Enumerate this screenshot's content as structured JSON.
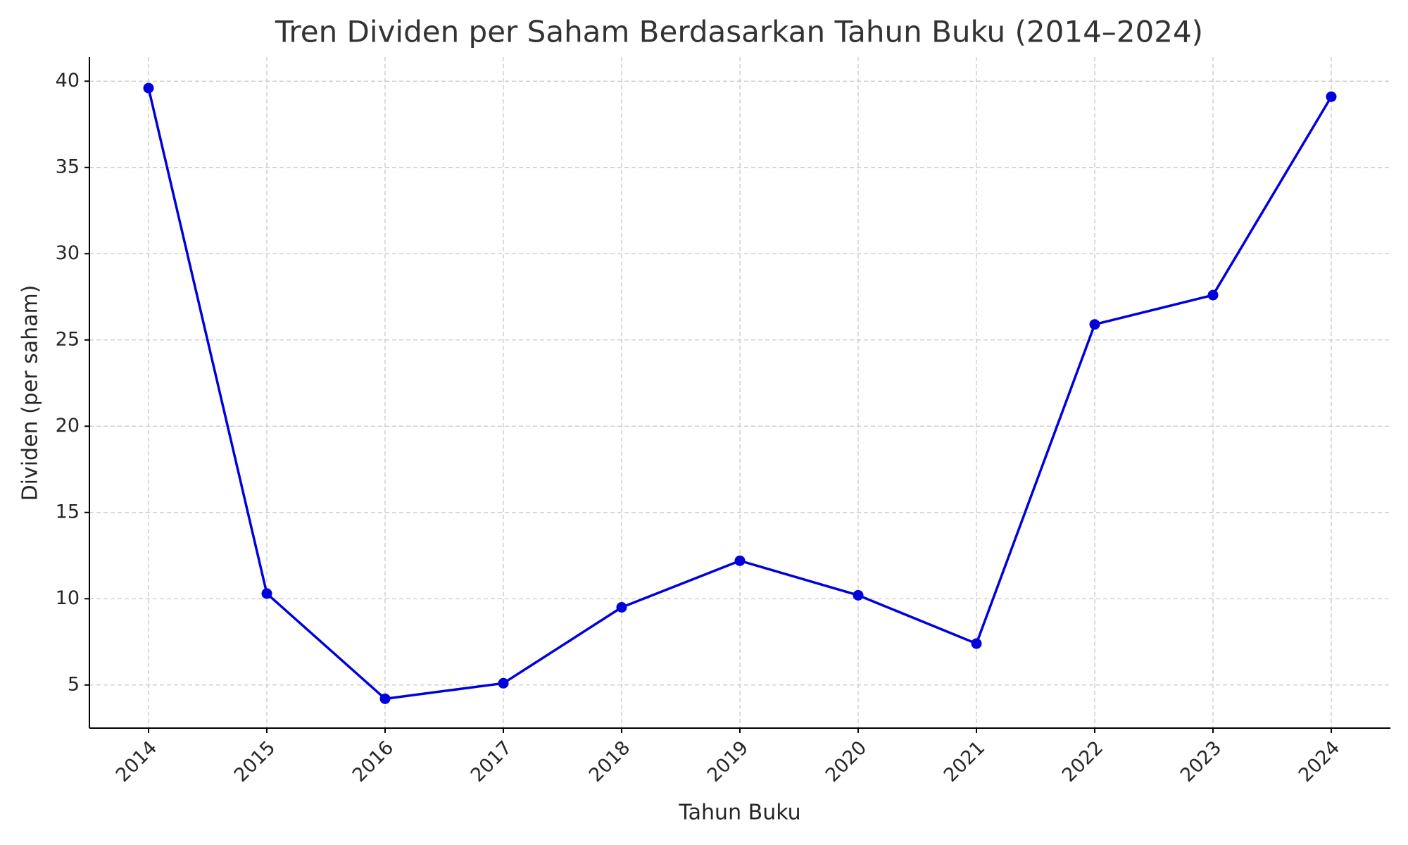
{
  "chart_data": {
    "type": "line",
    "title": "Tren Dividen per Saham Berdasarkan Tahun Buku (2014–2024)",
    "x_label": "Tahun Buku",
    "y_label": "Dividen (per saham)",
    "x": [
      2014,
      2015,
      2016,
      2017,
      2018,
      2019,
      2020,
      2021,
      2022,
      2023,
      2024
    ],
    "series": [
      {
        "name": "Dividen",
        "color": "#0000dd",
        "values": [
          39.6,
          10.3,
          4.2,
          5.1,
          9.5,
          12.2,
          10.2,
          7.4,
          25.9,
          27.6,
          39.1
        ]
      }
    ],
    "xlim": [
      2013.5,
      2024.5
    ],
    "xticks": [
      2014,
      2015,
      2016,
      2017,
      2018,
      2019,
      2020,
      2021,
      2022,
      2023,
      2024
    ],
    "ylim": [
      2.5,
      41.4
    ],
    "yticks": [
      5,
      10,
      15,
      20,
      25,
      30,
      35,
      40
    ],
    "grid": true,
    "markers": true
  }
}
